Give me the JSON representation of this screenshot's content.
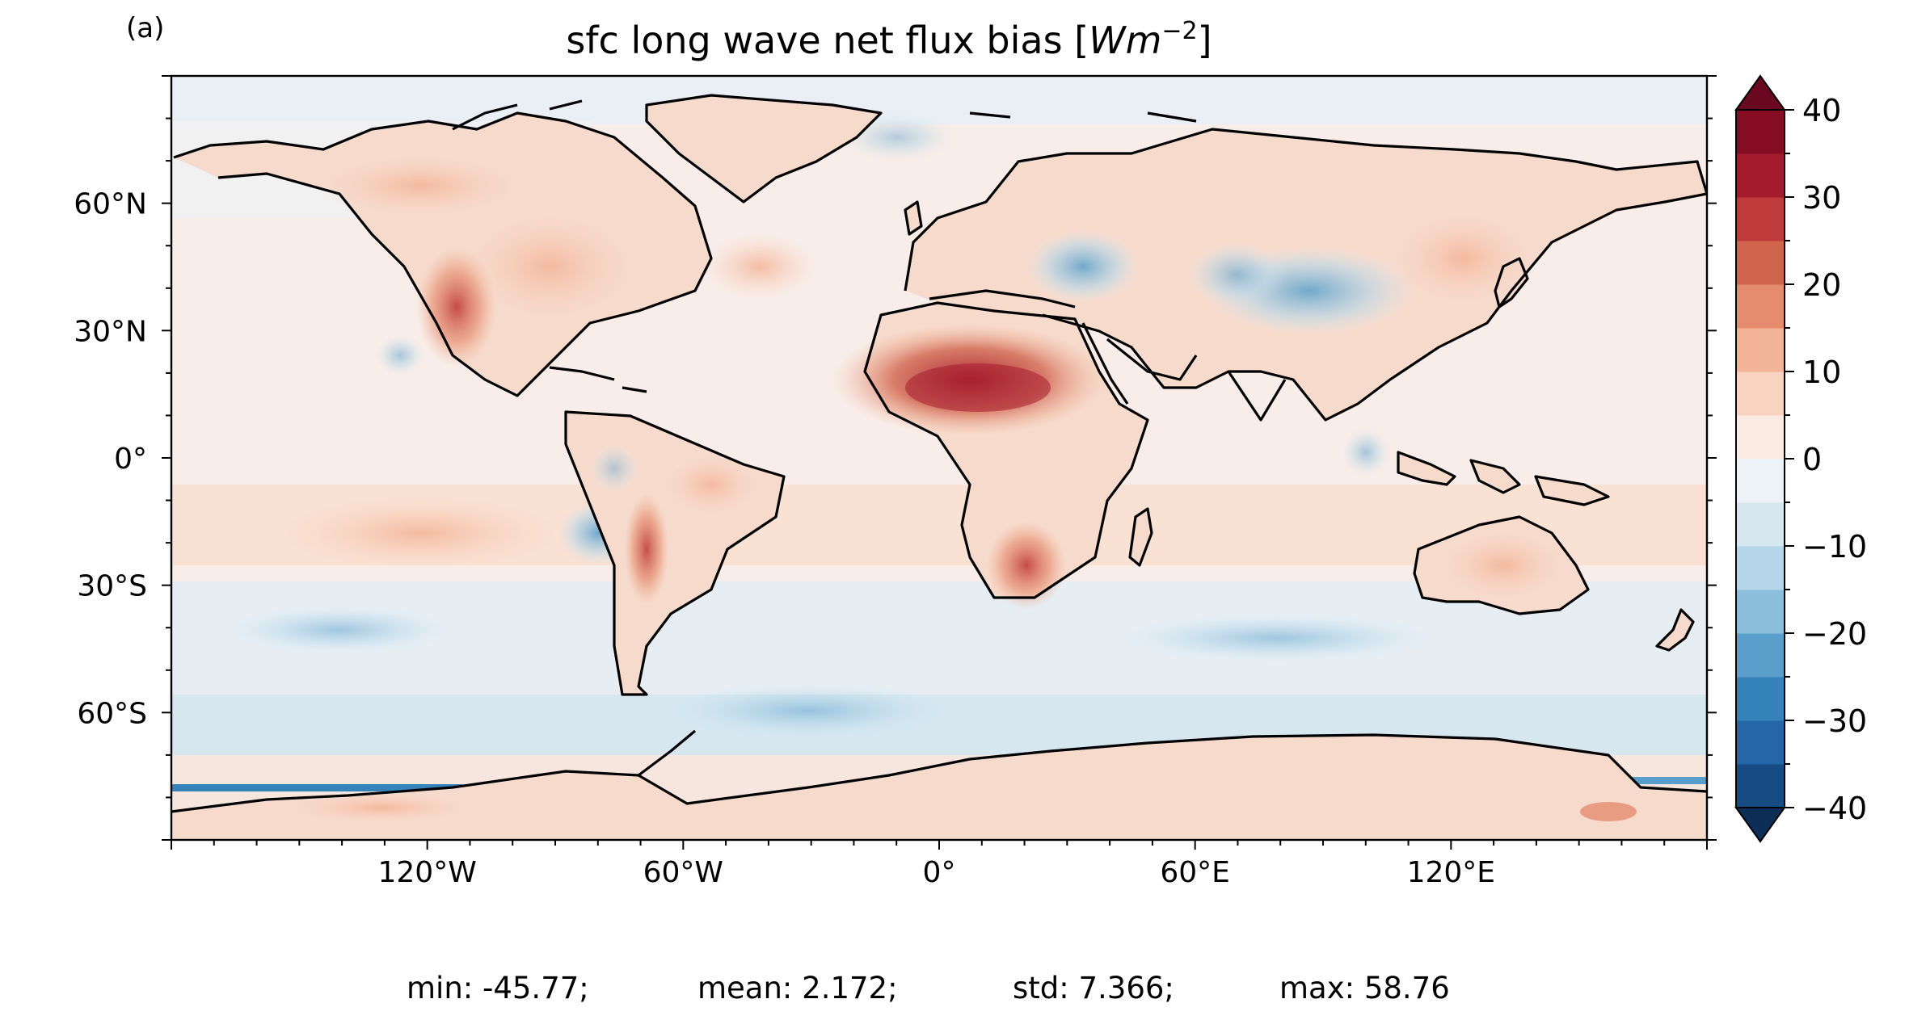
{
  "panel_label": "(a)",
  "title": {
    "text_prefix": "sfc long wave net flux bias [",
    "units_main": "Wm",
    "units_exp": "−2",
    "text_suffix": "]"
  },
  "map": {
    "projection": "PlateCarree",
    "lon_range": [
      -180,
      180
    ],
    "lat_range": [
      -90,
      90
    ],
    "coastlines": true,
    "colormap": "RdBu_r",
    "x_ticks": [
      {
        "lon": -120,
        "label": "120°W"
      },
      {
        "lon": -60,
        "label": "60°W"
      },
      {
        "lon": 0,
        "label": "0°"
      },
      {
        "lon": 60,
        "label": "60°E"
      },
      {
        "lon": 120,
        "label": "120°E"
      }
    ],
    "y_ticks": [
      {
        "lat": 60,
        "label": "60°N"
      },
      {
        "lat": 30,
        "label": "30°N"
      },
      {
        "lat": 0,
        "label": "0°"
      },
      {
        "lat": -30,
        "label": "30°S"
      },
      {
        "lat": -60,
        "label": "60°S"
      }
    ]
  },
  "colorbar": {
    "extend": "both",
    "range": [
      -40,
      40
    ],
    "levels": [
      -40,
      -35,
      -30,
      -25,
      -20,
      -15,
      -10,
      -5,
      0,
      5,
      10,
      15,
      20,
      25,
      30,
      35,
      40
    ],
    "colors": [
      "#164c83",
      "#2466a8",
      "#3682bb",
      "#5a9fcb",
      "#8bbfdb",
      "#b5d6e8",
      "#d6e7f0",
      "#ecf2f6",
      "#fbeae2",
      "#f9d2c0",
      "#f3b396",
      "#e68c6e",
      "#d0644f",
      "#bf3b3b",
      "#a51b2e",
      "#860c24"
    ],
    "under_color": "#0c2e57",
    "over_color": "#6a0820",
    "ticks": [
      {
        "value": 40,
        "label": "40"
      },
      {
        "value": 30,
        "label": "30"
      },
      {
        "value": 20,
        "label": "20"
      },
      {
        "value": 10,
        "label": "10"
      },
      {
        "value": 0,
        "label": "0"
      },
      {
        "value": -10,
        "label": "−10"
      },
      {
        "value": -20,
        "label": "−20"
      },
      {
        "value": -30,
        "label": "−30"
      },
      {
        "value": -40,
        "label": "−40"
      }
    ]
  },
  "stats": {
    "min": "min: -45.77;",
    "mean": "mean: 2.172;",
    "std": "std: 7.366;",
    "max": "max: 58.76"
  }
}
